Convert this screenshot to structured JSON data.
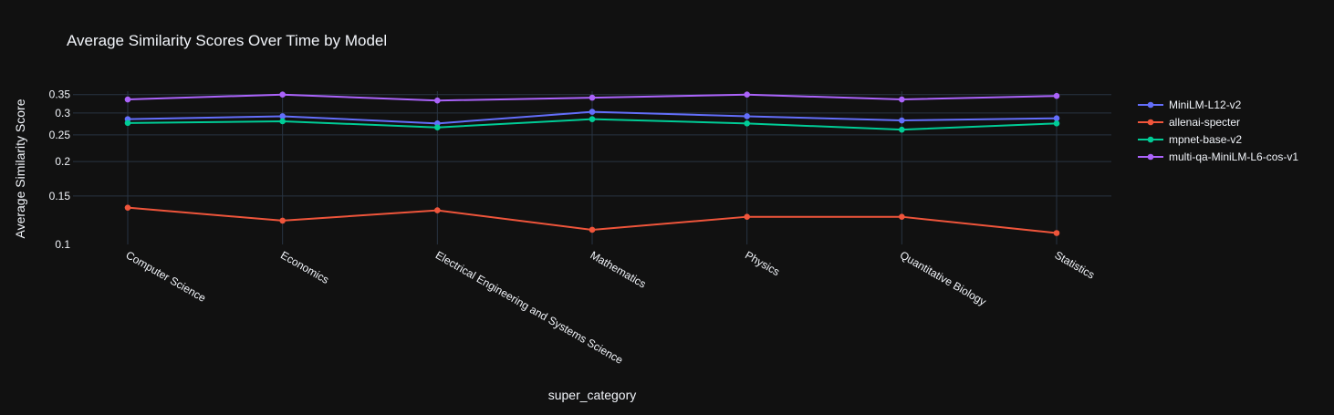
{
  "chart_data": {
    "type": "line",
    "title": "Average Similarity Scores Over Time by Model",
    "xlabel": "super_category",
    "ylabel": "Average Similarity Score",
    "y_scale": "log",
    "ylim": [
      0.1,
      0.36
    ],
    "y_ticks": [
      0.1,
      0.15,
      0.2,
      0.25,
      0.3,
      0.35
    ],
    "y_tick_labels": [
      "0.1",
      "0.15",
      "0.2",
      "0.25",
      "0.3",
      "0.35"
    ],
    "grid": true,
    "legend_position": "top-right",
    "categories": [
      "Computer Science",
      "Economics",
      "Electrical Engineering and Systems Science",
      "Mathematics",
      "Physics",
      "Quantitative Biology",
      "Statistics"
    ],
    "series": [
      {
        "name": "MiniLM-L12-v2",
        "color": "#636efa",
        "values": [
          0.285,
          0.292,
          0.275,
          0.303,
          0.292,
          0.282,
          0.287
        ]
      },
      {
        "name": "allenai-specter",
        "color": "#ef553b",
        "values": [
          0.136,
          0.122,
          0.133,
          0.113,
          0.126,
          0.126,
          0.11
        ]
      },
      {
        "name": "mpnet-base-v2",
        "color": "#00cc96",
        "values": [
          0.276,
          0.28,
          0.266,
          0.285,
          0.275,
          0.261,
          0.275
        ]
      },
      {
        "name": "multi-qa-MiniLM-L6-cos-v1",
        "color": "#ab63fa",
        "values": [
          0.336,
          0.35,
          0.333,
          0.341,
          0.35,
          0.336,
          0.346
        ]
      }
    ]
  }
}
